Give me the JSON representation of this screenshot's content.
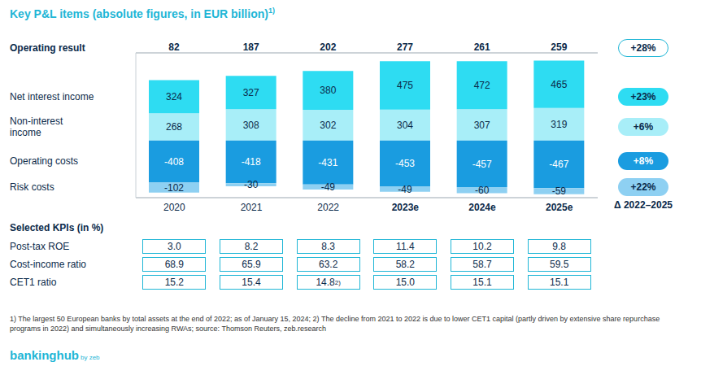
{
  "chart_data": {
    "type": "bar",
    "title": "Key P&L items (absolute figures, in EUR billion)",
    "title_footnote_mark": "1)",
    "categories": [
      "2020",
      "2021",
      "2022",
      "2023e",
      "2024e",
      "2025e"
    ],
    "stacked": true,
    "data_labels": true,
    "tick_labels": false,
    "grid": true,
    "ylim": [
      -560,
      860
    ],
    "yticks": [
      0
    ],
    "operating_result": {
      "name": "Operating result",
      "values": [
        82,
        187,
        202,
        277,
        261,
        259
      ],
      "delta": {
        "value": 28,
        "label": "+28%"
      }
    },
    "delta_title": "Δ 2022–2025",
    "series": [
      {
        "name": "Net interest income",
        "color": "#2edcf2",
        "values": [
          324,
          327,
          380,
          475,
          472,
          465
        ],
        "delta": {
          "value": 23,
          "label": "+23%"
        }
      },
      {
        "name": "Non-interest income",
        "color": "#a8eef8",
        "values": [
          268,
          308,
          302,
          304,
          307,
          319
        ],
        "delta": {
          "value": 6,
          "label": "+6%"
        }
      },
      {
        "name": "Operating costs",
        "color": "#1a9ce0",
        "values": [
          -408,
          -418,
          -431,
          -453,
          -457,
          -467
        ],
        "delta": {
          "value": 8,
          "label": "+8%"
        }
      },
      {
        "name": "Risk costs",
        "color": "#8ed0f2",
        "values": [
          -102,
          -30,
          -49,
          -49,
          -60,
          -59
        ],
        "delta": {
          "value": 22,
          "label": "+22%"
        }
      }
    ],
    "kpis": {
      "title": "Selected KPIs (in %)",
      "rows": [
        {
          "name": "Post-tax ROE",
          "values": [
            "3.0",
            "8.2",
            "8.3",
            "11.4",
            "10.2",
            "9.8"
          ],
          "notes": [
            null,
            null,
            null,
            null,
            null,
            null
          ]
        },
        {
          "name": "Cost-income ratio",
          "values": [
            "68.9",
            "65.9",
            "63.2",
            "58.2",
            "58.7",
            "59.5"
          ],
          "notes": [
            null,
            null,
            null,
            null,
            null,
            null
          ]
        },
        {
          "name": "CET1 ratio",
          "values": [
            "15.2",
            "15.4",
            "14.8",
            "15.0",
            "15.1",
            "15.1"
          ],
          "notes": [
            null,
            null,
            "2)",
            null,
            null,
            null
          ]
        }
      ]
    },
    "footnotes": "1) The largest 50 European banks by total assets at the end of 2022; as of January 15, 2024; 2) The decline from 2021 to 2022 is due to lower CET1 capital (partly driven by extensive share repurchase programs in 2022) and simultaneously increasing RWAs; source: Thomson Reuters, zeb.research",
    "brand": "bankinghub",
    "brand_suffix": "by zeb"
  }
}
